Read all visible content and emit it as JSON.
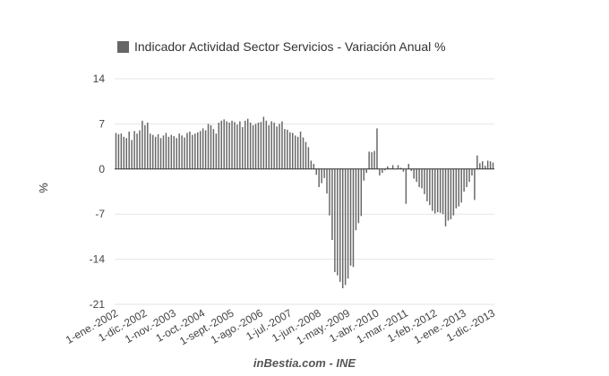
{
  "chart_data": {
    "type": "bar",
    "legend": {
      "label": "Indicador Actividad Sector Servicios - Variación Anual %",
      "color": "#666666",
      "placement": "top-left"
    },
    "ylabel": "%",
    "ylim": [
      -21,
      14
    ],
    "yticks": [
      14,
      7,
      0,
      -7,
      -14,
      -21
    ],
    "grid": true,
    "bar_color": "#666666",
    "x_start": "2002-01",
    "x_end": "2013-12",
    "x_frequency": "monthly",
    "xtick_labels": [
      "1-ene.-2002",
      "1-dic.-2002",
      "1-nov.-2003",
      "1-oct.-2004",
      "1-sept.-2005",
      "1-ago.-2006",
      "1-jul.-2007",
      "1-jun.-2008",
      "1-may.-2009",
      "1-abr.-2010",
      "1-mar.-2011",
      "1-feb.-2012",
      "1-ene.-2013",
      "1-dic.-2013"
    ],
    "values": [
      5.6,
      5.4,
      5.5,
      5.0,
      4.8,
      5.8,
      4.5,
      5.9,
      5.5,
      6.0,
      7.5,
      6.8,
      7.2,
      5.5,
      5.3,
      5.0,
      5.4,
      4.8,
      5.2,
      5.6,
      5.0,
      5.3,
      5.1,
      4.8,
      5.5,
      5.2,
      4.9,
      5.6,
      5.8,
      5.3,
      5.5,
      5.7,
      5.9,
      6.3,
      6.0,
      7.0,
      6.8,
      6.2,
      5.5,
      7.2,
      7.5,
      7.7,
      7.4,
      7.2,
      7.5,
      7.3,
      6.9,
      7.4,
      6.5,
      7.5,
      7.8,
      7.2,
      6.8,
      7.0,
      7.2,
      7.3,
      8.1,
      7.5,
      6.8,
      7.4,
      7.2,
      6.6,
      7.0,
      7.4,
      6.2,
      6.1,
      5.7,
      5.6,
      5.2,
      5.0,
      5.8,
      4.9,
      4.2,
      3.4,
      1.3,
      0.8,
      -0.9,
      -2.8,
      -2.2,
      -1.4,
      -3.8,
      -7.2,
      -11.0,
      -16.0,
      -16.5,
      -17.5,
      -18.5,
      -18.0,
      -17.0,
      -15.0,
      -15.2,
      -9.5,
      -8.4,
      -7.3,
      -1.8,
      -0.6,
      2.7,
      2.6,
      2.8,
      6.3,
      -1.0,
      -0.6,
      -0.2,
      0.4,
      0.1,
      0.6,
      0.0,
      0.6,
      0.2,
      -0.4,
      -5.4,
      0.8,
      -0.3,
      -1.5,
      -2.0,
      -2.8,
      -3.0,
      -3.9,
      -5.0,
      -5.6,
      -6.5,
      -6.9,
      -6.7,
      -6.8,
      -7.0,
      -8.9,
      -8.0,
      -7.8,
      -7.2,
      -6.1,
      -5.8,
      -5.2,
      -3.5,
      -2.8,
      -2.0,
      -1.0,
      -4.8,
      2.1,
      0.9,
      1.2,
      0.5,
      1.3,
      1.2,
      1.0
    ]
  },
  "source": "inBestia.com - INE"
}
